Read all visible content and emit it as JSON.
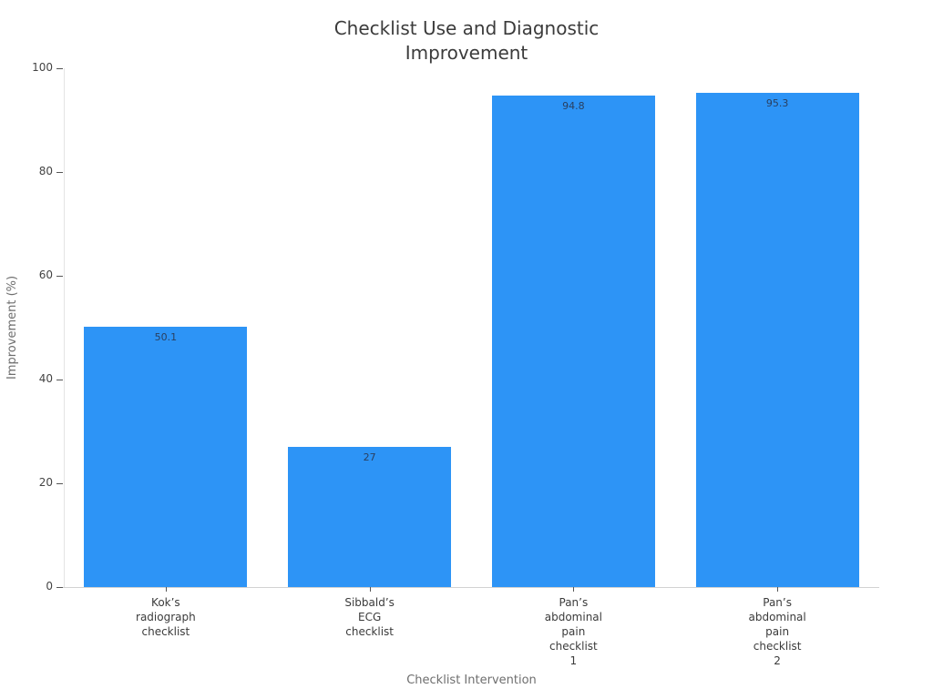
{
  "page": {
    "background_color": "#ffffff"
  },
  "chart_data": {
    "type": "bar",
    "title": "Checklist Use and Diagnostic Improvement",
    "xlabel": "Checklist Intervention",
    "ylabel": "Improvement (%)",
    "categories": [
      "Kok’s\nradiograph\nchecklist",
      "Sibbald’s\nECG\nchecklist",
      "Pan’s\nabdominal\npain\nchecklist\n1",
      "Pan’s\nabdominal\npain\nchecklist\n2"
    ],
    "values": [
      50.1,
      27,
      94.8,
      95.3
    ],
    "value_labels": [
      "50.1",
      "27",
      "94.8",
      "95.3"
    ],
    "yticks": [
      0,
      20,
      40,
      60,
      80,
      100
    ],
    "ylim": [
      0,
      100
    ],
    "bar_color": "#2d94f6",
    "value_label_color": "#2a3f5f",
    "bar_fraction_of_slot": 0.8,
    "grid": false,
    "legend_position": "none",
    "background_color": "#ffffff"
  }
}
